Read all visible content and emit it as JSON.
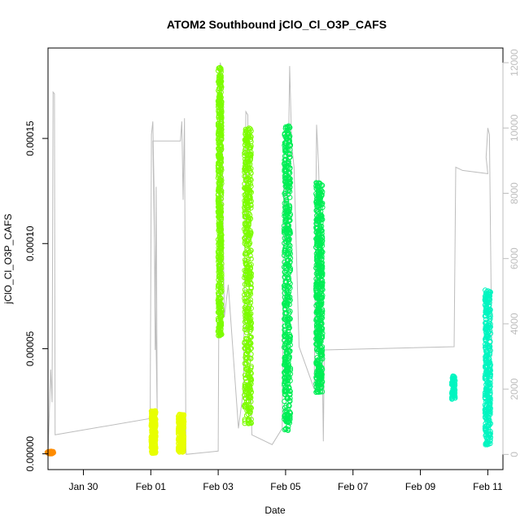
{
  "chart_data": {
    "type": "scatter",
    "title": "ATOM2 Southbound jClO_Cl_O3P_CAFS",
    "xlabel": "Date",
    "ylabel": "jClO_Cl_O3P_CAFS",
    "x_ticks": [
      "Jan 30",
      "Feb 01",
      "Feb 03",
      "Feb 05",
      "Feb 07",
      "Feb 09",
      "Feb 11"
    ],
    "x_tick_values": [
      0,
      2,
      4,
      6,
      8,
      10,
      12
    ],
    "x_unit_note": "days relative to Jan 30",
    "xlim": [
      -1.05,
      12.45
    ],
    "y_ticks": [
      "0.00000",
      "0.00005",
      "0.00010",
      "0.00015"
    ],
    "y_tick_values": [
      0,
      5e-05,
      0.0001,
      0.00015
    ],
    "ylim": [
      -7.5e-06,
      0.000193
    ],
    "y2_ticks": [
      "0",
      "2000",
      "4000",
      "6000",
      "8000",
      "10000",
      "12000"
    ],
    "y2_tick_values": [
      0,
      2000,
      4000,
      6000,
      8000,
      10000,
      12000
    ],
    "y2lim": [
      -465,
      12450
    ],
    "y2_color": "#bdbdbd",
    "series": [
      {
        "color": "#ff8c00",
        "clusters": [
          {
            "x": -0.98,
            "w": 0.2,
            "ymin": 0.0,
            "ymax": 1.2e-06,
            "n": 40
          }
        ]
      },
      {
        "color": "#e8ff00",
        "clusters": [
          {
            "x": 2.08,
            "w": 0.14,
            "ymin": 2e-07,
            "ymax": 2.05e-05,
            "n": 260
          },
          {
            "x": 2.9,
            "w": 0.17,
            "ymin": 8e-07,
            "ymax": 1.93e-05,
            "n": 240
          }
        ]
      },
      {
        "color": "#7cfc00",
        "clusters": [
          {
            "x": 4.05,
            "w": 0.11,
            "ymin": 5.6e-05,
            "ymax": 0.000184,
            "n": 520
          },
          {
            "x": 4.88,
            "w": 0.21,
            "ymin": 1.4e-05,
            "ymax": 0.000155,
            "n": 520
          }
        ]
      },
      {
        "color": "#00ee55",
        "clusters": [
          {
            "x": 6.05,
            "w": 0.19,
            "ymin": 1.1e-05,
            "ymax": 0.000156,
            "n": 520
          },
          {
            "x": 7.0,
            "w": 0.2,
            "ymin": 2.9e-05,
            "ymax": 0.000129,
            "n": 520
          }
        ]
      },
      {
        "color": "#00f5c0",
        "clusters": [
          {
            "x": 10.98,
            "w": 0.1,
            "ymin": 2.6e-05,
            "ymax": 3.7e-05,
            "n": 80
          },
          {
            "x": 12.0,
            "w": 0.17,
            "ymin": 4e-06,
            "ymax": 7.8e-05,
            "n": 360
          }
        ]
      }
    ],
    "secondary_line": {
      "color": "#bdbdbd",
      "points": [
        [
          -1.05,
          0
        ],
        [
          -0.97,
          2600
        ],
        [
          -0.93,
          1600
        ],
        [
          -0.9,
          11100
        ],
        [
          -0.86,
          11050
        ],
        [
          -0.84,
          600
        ],
        [
          1.98,
          1100
        ],
        [
          2.02,
          9800
        ],
        [
          2.06,
          10200
        ],
        [
          2.1,
          8000
        ],
        [
          2.13,
          3200
        ],
        [
          2.16,
          8200
        ],
        [
          2.19,
          1200
        ],
        [
          2.06,
          9600
        ],
        [
          2.88,
          9600
        ],
        [
          2.92,
          10200
        ],
        [
          2.96,
          7800
        ],
        [
          3.0,
          10300
        ],
        [
          3.04,
          200
        ],
        [
          3.05,
          0
        ],
        [
          4.0,
          100
        ],
        [
          4.03,
          6500
        ],
        [
          4.06,
          12000
        ],
        [
          4.1,
          11800
        ],
        [
          4.14,
          7600
        ],
        [
          4.18,
          4200
        ],
        [
          4.3,
          5200
        ],
        [
          4.6,
          800
        ],
        [
          4.75,
          2000
        ],
        [
          4.82,
          10500
        ],
        [
          4.88,
          10400
        ],
        [
          4.93,
          3500
        ],
        [
          5.0,
          600
        ],
        [
          5.6,
          300
        ],
        [
          5.9,
          800
        ],
        [
          5.95,
          9000
        ],
        [
          6.05,
          6500
        ],
        [
          6.12,
          11900
        ],
        [
          6.18,
          9500
        ],
        [
          6.25,
          8800
        ],
        [
          6.4,
          3300
        ],
        [
          6.85,
          2000
        ],
        [
          6.92,
          10100
        ],
        [
          6.98,
          8800
        ],
        [
          7.05,
          6000
        ],
        [
          7.12,
          400
        ],
        [
          7.15,
          3200
        ],
        [
          11.0,
          3300
        ],
        [
          11.05,
          8800
        ],
        [
          11.25,
          8700
        ],
        [
          12.0,
          8600
        ],
        [
          11.95,
          9100
        ],
        [
          12.0,
          10000
        ],
        [
          12.05,
          9800
        ],
        [
          12.12,
          3000
        ]
      ]
    }
  }
}
